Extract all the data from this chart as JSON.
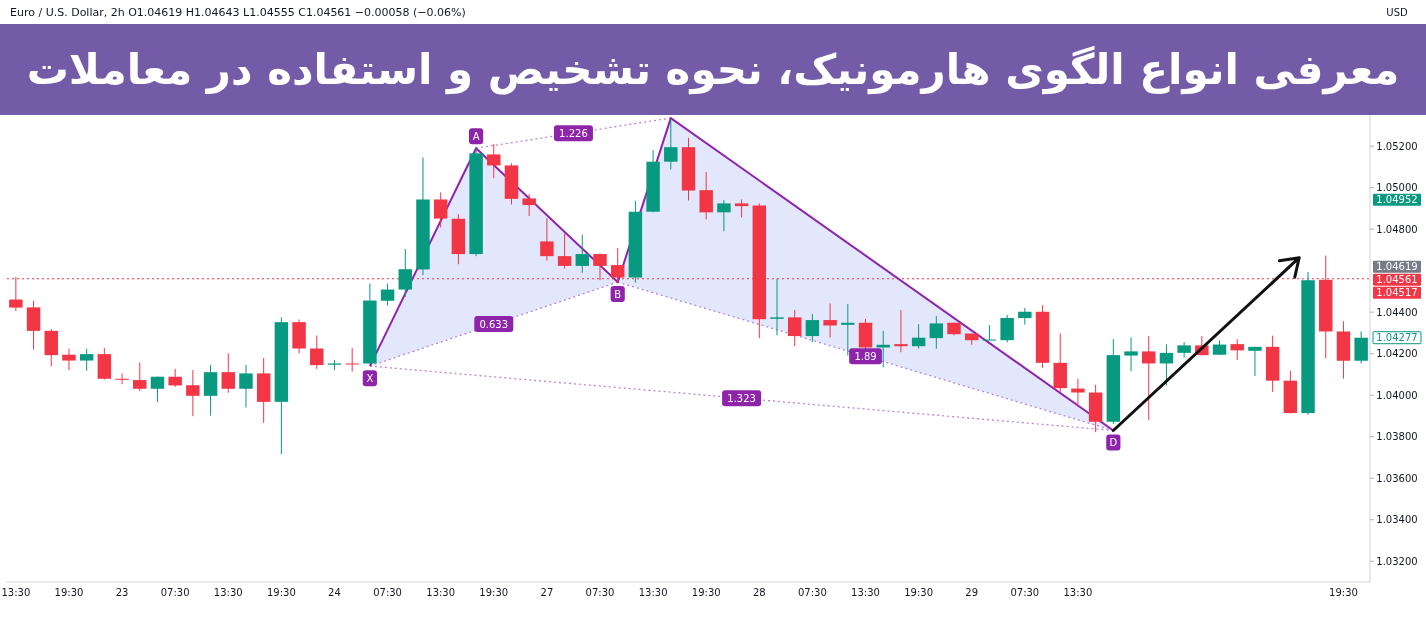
{
  "chart_data": {
    "type": "candlestick",
    "title": "معرفی انواع الگوی هارمونیک، نحوه تشخیص و استفاده در معاملات",
    "subtitle": "Euro / U.S. Dollar, 2h  O1.04619 H1.04643 L1.04555 C1.04561 −0.00058 (−0.06%)",
    "categories": [
      "13:30",
      null,
      null,
      "19:30",
      null,
      null,
      "23",
      null,
      null,
      "07:30",
      null,
      null,
      "13:30",
      null,
      null,
      "19:30",
      null,
      null,
      "24",
      null,
      null,
      "07:30",
      null,
      null,
      "13:30",
      null,
      null,
      "19:30",
      null,
      null,
      "27",
      null,
      null,
      "07:30",
      null,
      null,
      "13:30",
      null,
      null,
      "19:30",
      null,
      null,
      "28",
      null,
      null,
      "07:30",
      null,
      null,
      "13:30",
      null,
      null,
      "19:30",
      null,
      null,
      "29",
      null,
      null,
      "07:30",
      null,
      null,
      "13:30",
      null,
      null,
      null,
      null,
      null,
      null,
      null,
      null,
      null,
      null,
      null,
      null,
      null,
      null,
      "19:30",
      null
    ],
    "ohlc": [
      [
        1.04461,
        1.0457,
        1.04406,
        1.04422
      ],
      [
        1.04423,
        1.04455,
        1.0422,
        1.0431
      ],
      [
        1.0431,
        1.04318,
        1.0414,
        1.04193
      ],
      [
        1.04195,
        1.04224,
        1.04121,
        1.04167
      ],
      [
        1.04167,
        1.04224,
        1.04118,
        1.04198
      ],
      [
        1.04198,
        1.04227,
        1.04075,
        1.04079
      ],
      [
        1.04079,
        1.04105,
        1.04053,
        1.04074
      ],
      [
        1.04073,
        1.04158,
        1.0402,
        1.04031
      ],
      [
        1.04031,
        1.04089,
        1.03967,
        1.04089
      ],
      [
        1.04089,
        1.04127,
        1.0404,
        1.04047
      ],
      [
        1.04048,
        1.04121,
        1.03899,
        1.03997
      ],
      [
        1.03997,
        1.04146,
        1.03902,
        1.04111
      ],
      [
        1.04111,
        1.04201,
        1.04012,
        1.04031
      ],
      [
        1.04031,
        1.04146,
        1.03941,
        1.04105
      ],
      [
        1.04105,
        1.04179,
        1.03867,
        1.03968
      ],
      [
        1.03968,
        1.04375,
        1.03716,
        1.04352
      ],
      [
        1.04352,
        1.04365,
        1.04201,
        1.04225
      ],
      [
        1.04225,
        1.04288,
        1.04127,
        1.04145
      ],
      [
        1.04147,
        1.04169,
        1.04121,
        1.04153
      ],
      [
        1.04153,
        1.04227,
        1.04114,
        1.0415
      ],
      [
        1.04153,
        1.04538,
        1.0415,
        1.04456
      ],
      [
        1.04455,
        1.04538,
        1.04432,
        1.04509
      ],
      [
        1.04509,
        1.04704,
        1.04474,
        1.04607
      ],
      [
        1.04606,
        1.05145,
        1.04578,
        1.04943
      ],
      [
        1.04943,
        1.04977,
        1.04808,
        1.04851
      ],
      [
        1.0485,
        1.04872,
        1.04631,
        1.0468
      ],
      [
        1.0468,
        1.05197,
        1.0467,
        1.05165
      ],
      [
        1.0516,
        1.0521,
        1.05046,
        1.05107
      ],
      [
        1.05107,
        1.05117,
        1.04919,
        1.04946
      ],
      [
        1.04948,
        1.04969,
        1.04863,
        1.04916
      ],
      [
        1.04741,
        1.04853,
        1.04648,
        1.0467
      ],
      [
        1.0467,
        1.04779,
        1.0461,
        1.04623
      ],
      [
        1.04623,
        1.04773,
        1.0459,
        1.0468
      ],
      [
        1.0468,
        1.04683,
        1.04554,
        1.04623
      ],
      [
        1.04627,
        1.04709,
        1.04538,
        1.04567
      ],
      [
        1.04567,
        1.04937,
        1.04542,
        1.04884
      ],
      [
        1.04884,
        1.05181,
        1.04881,
        1.05125
      ],
      [
        1.05125,
        1.0533,
        1.05088,
        1.05195
      ],
      [
        1.05195,
        1.0524,
        1.04938,
        1.04986
      ],
      [
        1.04988,
        1.05075,
        1.04847,
        1.04881
      ],
      [
        1.04881,
        1.0494,
        1.0479,
        1.04924
      ],
      [
        1.04924,
        1.04943,
        1.04856,
        1.04911
      ],
      [
        1.04914,
        1.04924,
        1.04275,
        1.04366
      ],
      [
        1.04368,
        1.04562,
        1.04288,
        1.04375
      ],
      [
        1.04375,
        1.0441,
        1.04236,
        1.04285
      ],
      [
        1.04285,
        1.04391,
        1.04256,
        1.04362
      ],
      [
        1.04362,
        1.04442,
        1.04278,
        1.04336
      ],
      [
        1.04339,
        1.04439,
        1.04191,
        1.04349
      ],
      [
        1.04349,
        1.04368,
        1.04224,
        1.0423
      ],
      [
        1.0423,
        1.0431,
        1.04134,
        1.04243
      ],
      [
        1.04246,
        1.0441,
        1.04207,
        1.04236
      ],
      [
        1.04236,
        1.04342,
        1.04224,
        1.04277
      ],
      [
        1.04275,
        1.04381,
        1.04224,
        1.04346
      ],
      [
        1.04349,
        1.0435,
        1.04288,
        1.04294
      ],
      [
        1.04297,
        1.04297,
        1.04243,
        1.04265
      ],
      [
        1.04265,
        1.04338,
        1.04265,
        1.04268
      ],
      [
        1.04265,
        1.04387,
        1.04254,
        1.04372
      ],
      [
        1.04372,
        1.0442,
        1.0434,
        1.04402
      ],
      [
        1.04402,
        1.04433,
        1.04132,
        1.04156
      ],
      [
        1.04156,
        1.04298,
        1.04016,
        1.04034
      ],
      [
        1.04032,
        1.04079,
        1.03957,
        1.04013
      ],
      [
        1.04013,
        1.0405,
        1.03822,
        1.03872
      ],
      [
        1.03872,
        1.0427,
        1.03862,
        1.04193
      ],
      [
        1.04191,
        1.04278,
        1.04116,
        1.04211
      ],
      [
        1.04211,
        1.04285,
        1.0388,
        1.04153
      ],
      [
        1.04153,
        1.04245,
        1.04047,
        1.04204
      ],
      [
        1.04204,
        1.04256,
        1.04181,
        1.0424
      ],
      [
        1.0424,
        1.04285,
        1.04191,
        1.04193
      ],
      [
        1.04195,
        1.04264,
        1.04193,
        1.04244
      ],
      [
        1.04246,
        1.0427,
        1.04169,
        1.04216
      ],
      [
        1.04214,
        1.04233,
        1.04092,
        1.04233
      ],
      [
        1.04233,
        1.04287,
        1.04016,
        1.0407
      ],
      [
        1.0407,
        1.04118,
        1.03912,
        1.03914
      ],
      [
        1.03914,
        1.04593,
        1.03905,
        1.04554
      ],
      [
        1.04556,
        1.04673,
        1.04178,
        1.04307
      ],
      [
        1.04307,
        1.04356,
        1.0408,
        1.04166
      ],
      [
        1.04166,
        1.04307,
        1.04153,
        1.04277
      ]
    ],
    "series": [
      {
        "type": "line",
        "color": "#8e24aa",
        "line_style": "solid",
        "values": [
          null,
          null,
          null,
          null,
          null,
          null,
          null,
          null,
          null,
          null,
          null,
          null,
          null,
          null,
          null,
          null,
          null,
          null,
          null,
          null,
          1.0414,
          null,
          null,
          null,
          null,
          null,
          1.0519,
          null,
          null,
          null,
          null,
          null,
          null,
          null,
          1.04545,
          null,
          null,
          1.05335,
          null,
          null,
          null,
          null,
          null,
          null,
          null,
          null,
          null,
          null,
          null,
          null,
          null,
          null,
          null,
          null,
          null,
          null,
          null,
          null,
          null,
          null,
          null,
          null,
          1.0383,
          null,
          null,
          null,
          null,
          null,
          null,
          null,
          null,
          null,
          null,
          null,
          null,
          null,
          null
        ],
        "value_labels": [
          null,
          null,
          null,
          null,
          null,
          null,
          null,
          null,
          null,
          null,
          null,
          null,
          null,
          null,
          null,
          null,
          null,
          null,
          null,
          null,
          "X",
          null,
          null,
          null,
          null,
          null,
          "A",
          null,
          null,
          null,
          null,
          null,
          null,
          null,
          "B",
          null,
          null,
          null,
          null,
          null,
          null,
          null,
          null,
          null,
          null,
          null,
          null,
          null,
          null,
          null,
          null,
          null,
          null,
          null,
          null,
          null,
          null,
          null,
          null,
          null,
          null,
          null,
          "D",
          null,
          null,
          null,
          null,
          null,
          null,
          null,
          null,
          null,
          null,
          null,
          null,
          null,
          null
        ]
      },
      {
        "type": "line",
        "name": "0.633",
        "color": "#b388d0",
        "line_style": "dotted",
        "values": [
          null,
          null,
          null,
          null,
          null,
          null,
          null,
          null,
          null,
          null,
          null,
          null,
          null,
          null,
          null,
          null,
          null,
          null,
          null,
          null,
          1.0414,
          null,
          null,
          null,
          null,
          null,
          null,
          null,
          null,
          null,
          null,
          null,
          null,
          null,
          1.04545,
          null,
          null,
          null,
          null,
          null,
          null,
          null,
          null,
          null,
          null,
          null,
          null,
          null,
          null,
          null,
          null,
          null,
          null,
          null,
          null,
          null,
          null,
          null,
          null,
          null,
          null,
          null,
          null,
          null,
          null,
          null,
          null,
          null,
          null,
          null,
          null,
          null,
          null,
          null,
          null,
          null,
          null
        ]
      },
      {
        "type": "line",
        "name": "1.226",
        "color": "#b388d0",
        "line_style": "dotted",
        "values": [
          null,
          null,
          null,
          null,
          null,
          null,
          null,
          null,
          null,
          null,
          null,
          null,
          null,
          null,
          null,
          null,
          null,
          null,
          null,
          null,
          null,
          null,
          null,
          null,
          null,
          null,
          1.0519,
          null,
          null,
          null,
          null,
          null,
          null,
          null,
          null,
          null,
          null,
          1.05335,
          null,
          null,
          null,
          null,
          null,
          null,
          null,
          null,
          null,
          null,
          null,
          null,
          null,
          null,
          null,
          null,
          null,
          null,
          null,
          null,
          null,
          null,
          null,
          null,
          null,
          null,
          null,
          null,
          null,
          null,
          null,
          null,
          null,
          null,
          null,
          null,
          null,
          null,
          null
        ]
      },
      {
        "type": "line",
        "name": "1.89",
        "color": "#b388d0",
        "line_style": "dotted",
        "values": [
          null,
          null,
          null,
          null,
          null,
          null,
          null,
          null,
          null,
          null,
          null,
          null,
          null,
          null,
          null,
          null,
          null,
          null,
          null,
          null,
          null,
          null,
          null,
          null,
          null,
          null,
          null,
          null,
          null,
          null,
          null,
          null,
          null,
          null,
          1.04545,
          null,
          null,
          null,
          null,
          null,
          null,
          null,
          null,
          null,
          null,
          null,
          null,
          null,
          null,
          null,
          null,
          null,
          null,
          null,
          null,
          null,
          null,
          null,
          null,
          null,
          null,
          null,
          1.0383,
          null,
          null,
          null,
          null,
          null,
          null,
          null,
          null,
          null,
          null,
          null,
          null,
          null,
          null
        ]
      },
      {
        "type": "line",
        "name": "1.323",
        "color": "#b388d0",
        "line_style": "dotted",
        "values": [
          null,
          null,
          null,
          null,
          null,
          null,
          null,
          null,
          null,
          null,
          null,
          null,
          null,
          null,
          null,
          null,
          null,
          null,
          null,
          null,
          1.0414,
          null,
          null,
          null,
          null,
          null,
          null,
          null,
          null,
          null,
          null,
          null,
          null,
          null,
          null,
          null,
          null,
          null,
          null,
          null,
          null,
          null,
          null,
          null,
          null,
          null,
          null,
          null,
          null,
          null,
          null,
          null,
          null,
          null,
          null,
          null,
          null,
          null,
          null,
          null,
          null,
          null,
          1.0383,
          null,
          null,
          null,
          null,
          null,
          null,
          null,
          null,
          null,
          null,
          null,
          null,
          null,
          null
        ]
      }
    ],
    "ylim": [
      1.031,
      1.0535
    ],
    "yticks": [
      {
        "value": 1.032,
        "label": "1.03200"
      },
      {
        "value": 1.034,
        "label": "1.03400"
      },
      {
        "value": 1.036,
        "label": "1.03600"
      },
      {
        "value": 1.038,
        "label": "1.03800"
      },
      {
        "value": 1.04,
        "label": "1.04000"
      },
      {
        "value": 1.042,
        "label": "1.04200"
      },
      {
        "value": 1.044,
        "label": "1.04400"
      },
      {
        "value": 1.048,
        "label": "1.04800"
      },
      {
        "value": 1.05,
        "label": "1.05000"
      },
      {
        "value": 1.052,
        "label": "1.05200"
      }
    ],
    "ref_lines": [
      {
        "axis": "y",
        "value": 1.04561,
        "label": "1.04561",
        "color": "#f23645",
        "line_style": "dotted"
      }
    ],
    "annotations": [
      "1.04952",
      "1.04619",
      "1.04517",
      "1.04277",
      "USD"
    ]
  }
}
